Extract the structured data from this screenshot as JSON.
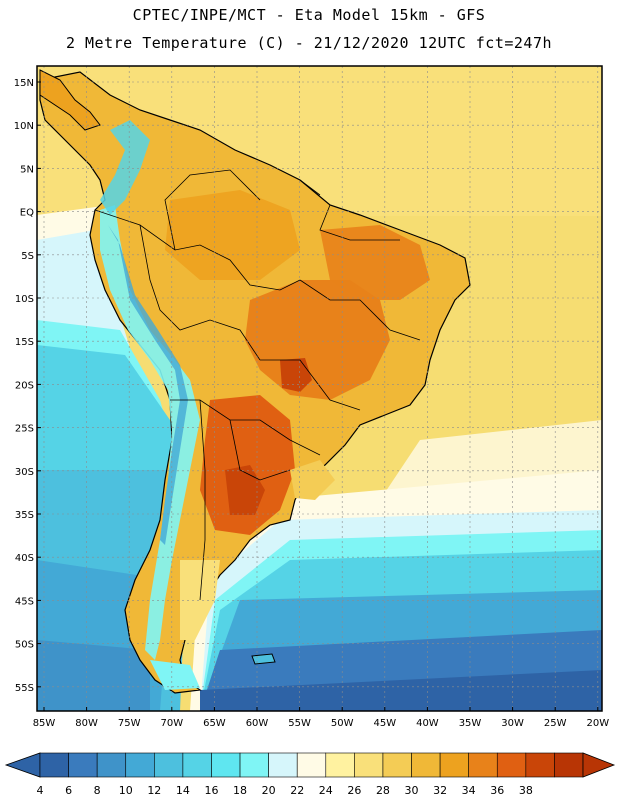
{
  "header": {
    "line1": "CPTEC/INPE/MCT -  Eta Model 15km - GFS",
    "line2": "2 Metre Temperature (C) - 21/12/2020 12UTC fct=247h"
  },
  "map": {
    "lat_labels": [
      "15N",
      "10N",
      "5N",
      "EQ",
      "5S",
      "10S",
      "15S",
      "20S",
      "25S",
      "30S",
      "35S",
      "40S",
      "45S",
      "50S",
      "55S"
    ],
    "lon_labels": [
      "85W",
      "80W",
      "75W",
      "70W",
      "65W",
      "60W",
      "55W",
      "50W",
      "45W",
      "40W",
      "35W",
      "30W",
      "25W",
      "20W"
    ]
  },
  "colorbar": {
    "labels": [
      "4",
      "6",
      "8",
      "10",
      "12",
      "14",
      "16",
      "18",
      "20",
      "22",
      "24",
      "26",
      "28",
      "30",
      "32",
      "34",
      "36",
      "38"
    ],
    "colors": [
      "#2e63a6",
      "#3a7bbd",
      "#3f93c9",
      "#43a9d6",
      "#4dc0de",
      "#55d3e6",
      "#5fe6f0",
      "#7ff5f5",
      "#d6f6fb",
      "#fffbe6",
      "#fff2a0",
      "#f9e07a",
      "#f4cc55",
      "#f0b837",
      "#eda21f",
      "#e8821a",
      "#e06012",
      "#c94508",
      "#b83505"
    ]
  }
}
